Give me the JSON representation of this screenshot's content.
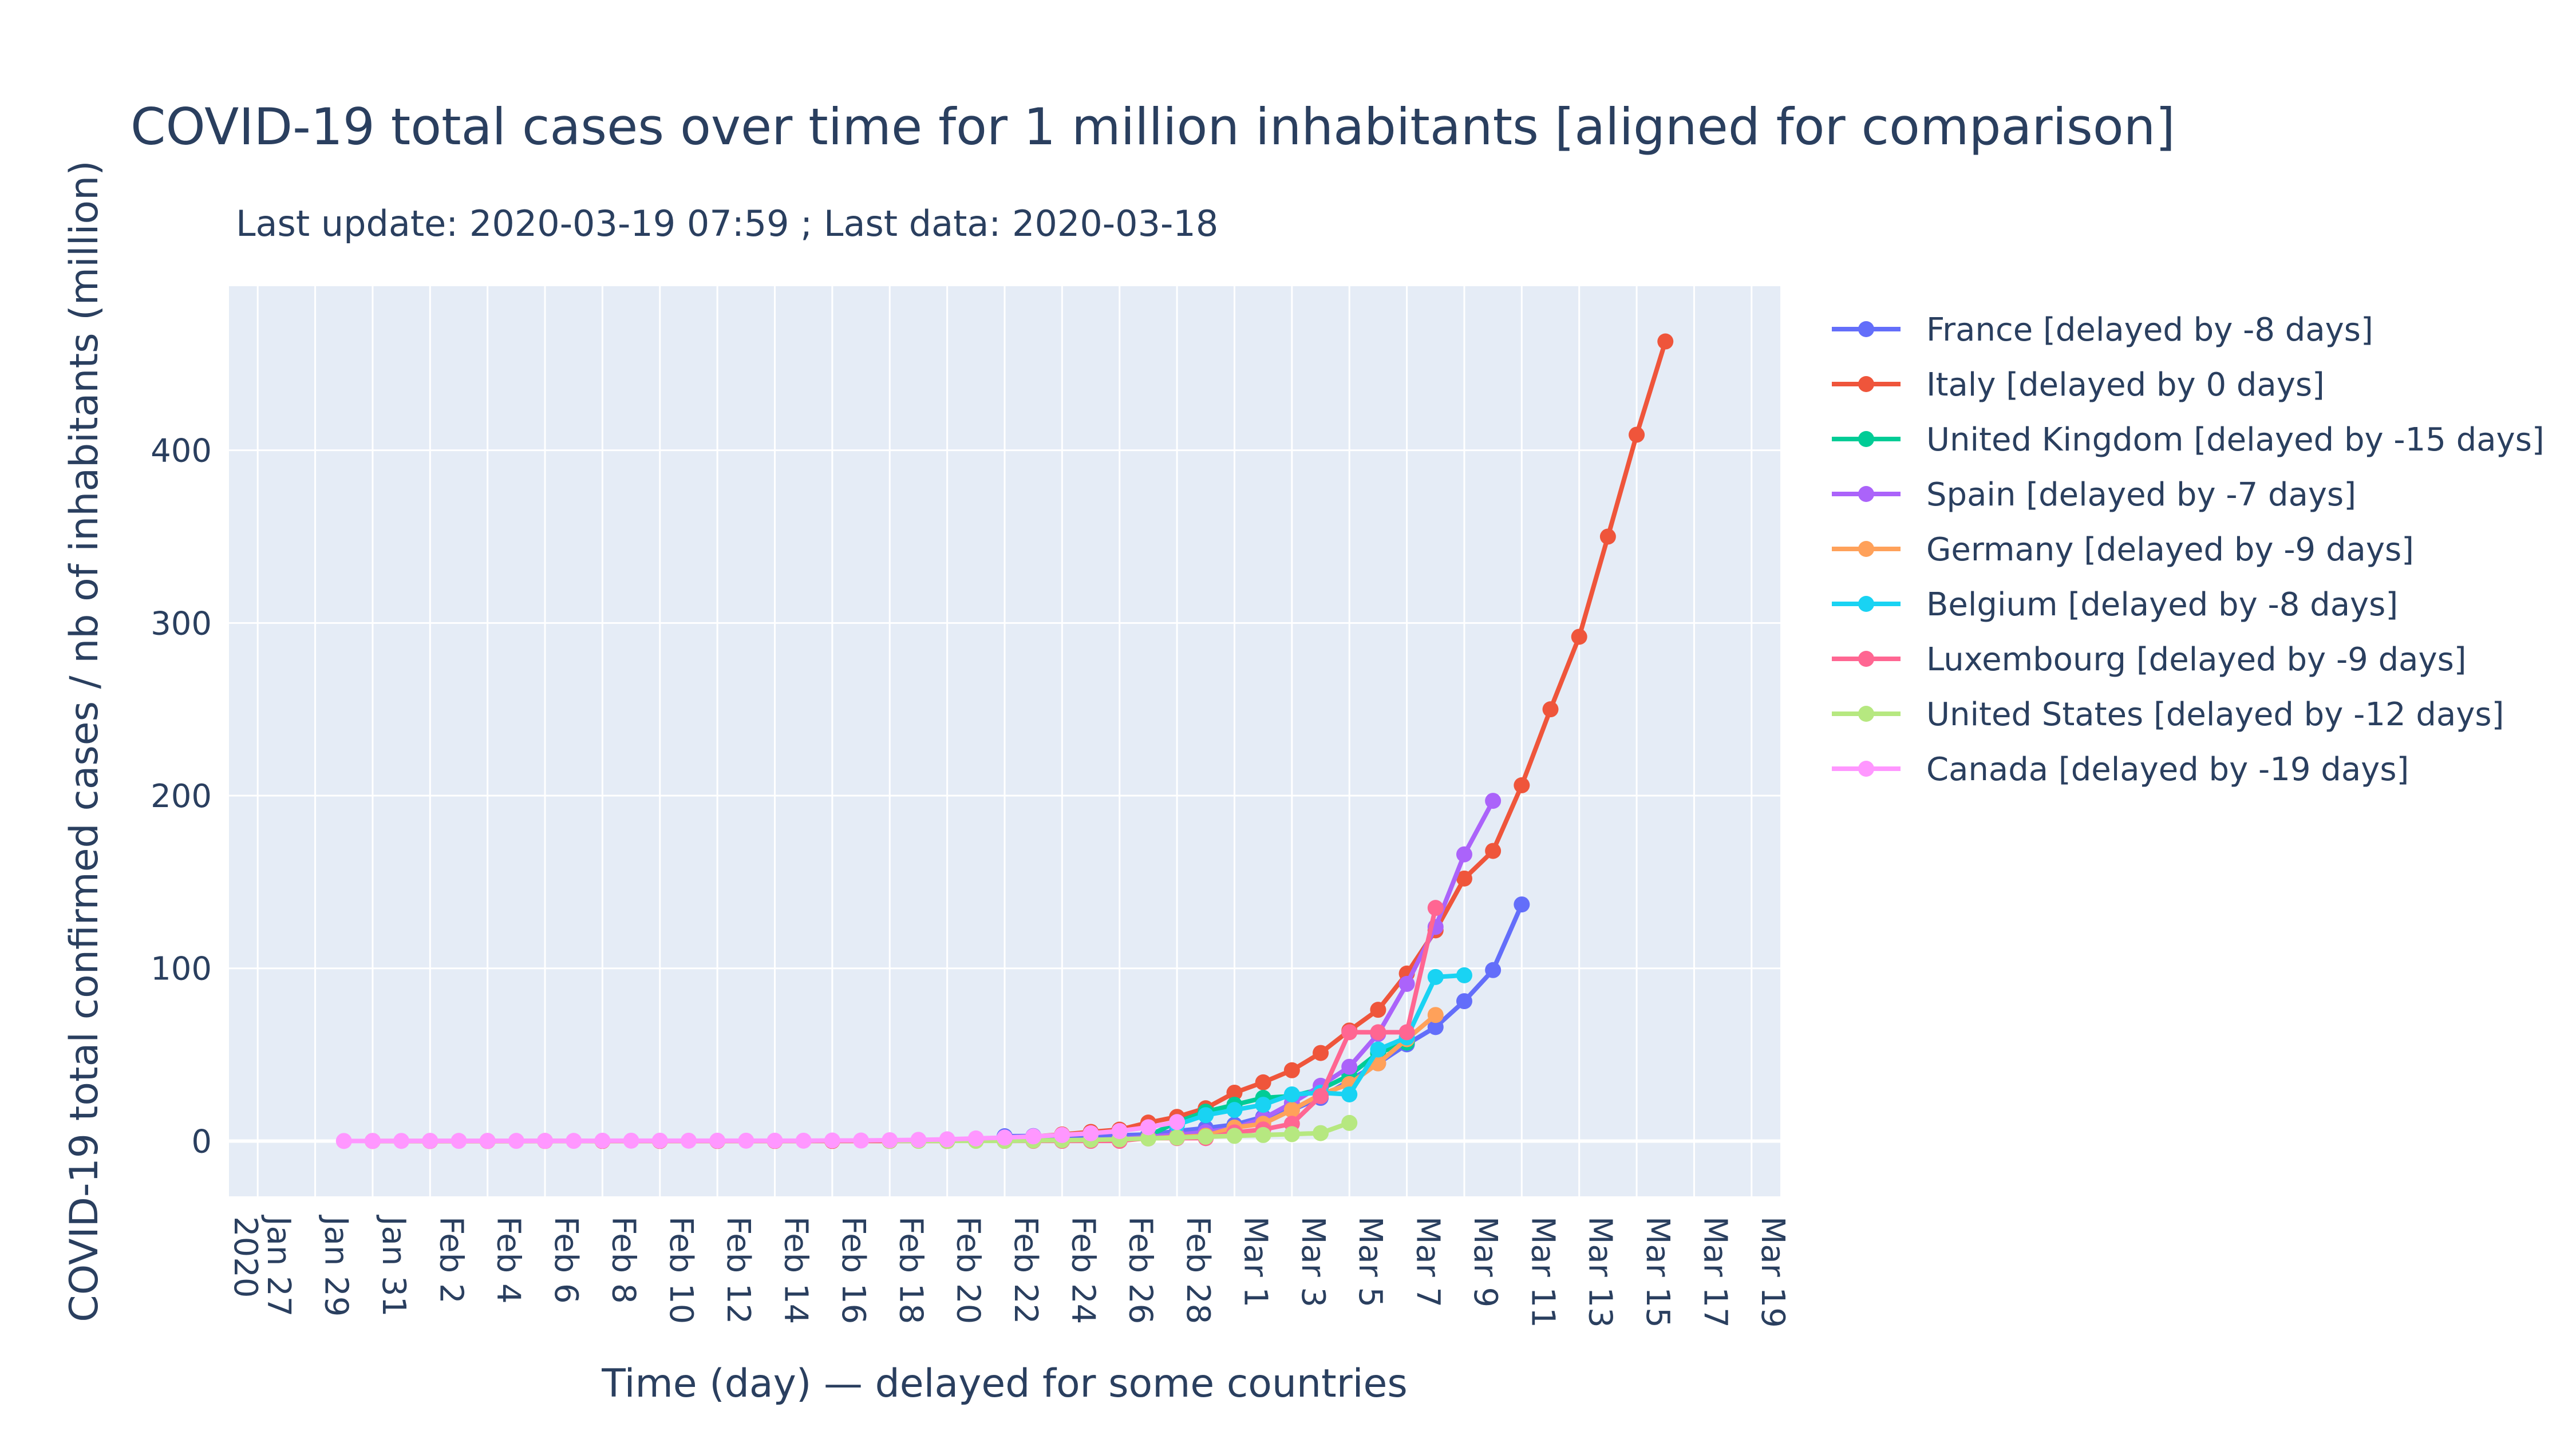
{
  "chart_data": {
    "type": "line",
    "title": "COVID-19 total cases over time for 1 million inhabitants [aligned for comparison]",
    "subtitle": "Last update: 2020-03-19 07:59 ; Last data: 2020-03-18",
    "xlabel": "Time (day) — delayed for some countries",
    "ylabel": "COVID-19 total confirmed cases / nb of inhabitants (million)",
    "x_range": [
      "2020-01-26",
      "2020-03-20"
    ],
    "ylim": [
      -32,
      495
    ],
    "y_ticks": [
      0,
      100,
      200,
      300,
      400
    ],
    "x_ticks": [
      {
        "date": "2020-01-27",
        "label": "Jan 27",
        "sub": "2020"
      },
      {
        "date": "2020-01-29",
        "label": "Jan 29"
      },
      {
        "date": "2020-01-31",
        "label": "Jan 31"
      },
      {
        "date": "2020-02-02",
        "label": "Feb 2"
      },
      {
        "date": "2020-02-04",
        "label": "Feb 4"
      },
      {
        "date": "2020-02-06",
        "label": "Feb 6"
      },
      {
        "date": "2020-02-08",
        "label": "Feb 8"
      },
      {
        "date": "2020-02-10",
        "label": "Feb 10"
      },
      {
        "date": "2020-02-12",
        "label": "Feb 12"
      },
      {
        "date": "2020-02-14",
        "label": "Feb 14"
      },
      {
        "date": "2020-02-16",
        "label": "Feb 16"
      },
      {
        "date": "2020-02-18",
        "label": "Feb 18"
      },
      {
        "date": "2020-02-20",
        "label": "Feb 20"
      },
      {
        "date": "2020-02-22",
        "label": "Feb 22"
      },
      {
        "date": "2020-02-24",
        "label": "Feb 24"
      },
      {
        "date": "2020-02-26",
        "label": "Feb 26"
      },
      {
        "date": "2020-02-28",
        "label": "Feb 28"
      },
      {
        "date": "2020-03-01",
        "label": "Mar 1"
      },
      {
        "date": "2020-03-03",
        "label": "Mar 3"
      },
      {
        "date": "2020-03-05",
        "label": "Mar 5"
      },
      {
        "date": "2020-03-07",
        "label": "Mar 7"
      },
      {
        "date": "2020-03-09",
        "label": "Mar 9"
      },
      {
        "date": "2020-03-11",
        "label": "Mar 11"
      },
      {
        "date": "2020-03-13",
        "label": "Mar 13"
      },
      {
        "date": "2020-03-15",
        "label": "Mar 15"
      },
      {
        "date": "2020-03-17",
        "label": "Mar 17"
      },
      {
        "date": "2020-03-19",
        "label": "Mar 19"
      }
    ],
    "grid": true,
    "legend_position": "right",
    "series": [
      {
        "name": "France [delayed by -8 days]",
        "color": "#636efa",
        "points": [
          [
            "2020-02-22",
            2.8
          ],
          [
            "2020-02-23",
            2.9
          ],
          [
            "2020-02-24",
            3.0
          ],
          [
            "2020-02-25",
            3.1
          ],
          [
            "2020-02-26",
            3.3
          ],
          [
            "2020-02-27",
            3.8
          ],
          [
            "2020-02-28",
            5.8
          ],
          [
            "2020-02-29",
            7.5
          ],
          [
            "2020-03-01",
            9.5
          ],
          [
            "2020-03-02",
            14
          ],
          [
            "2020-03-03",
            18
          ],
          [
            "2020-03-04",
            25
          ],
          [
            "2020-03-05",
            35
          ],
          [
            "2020-03-06",
            45
          ],
          [
            "2020-03-07",
            56
          ],
          [
            "2020-03-08",
            66
          ],
          [
            "2020-03-09",
            81
          ],
          [
            "2020-03-10",
            99
          ],
          [
            "2020-03-11",
            137
          ]
        ]
      },
      {
        "name": "Italy [delayed by 0 days]",
        "color": "#ef553b",
        "points": [
          [
            "2020-01-31",
            0.03
          ],
          [
            "2020-02-02",
            0.03
          ],
          [
            "2020-02-04",
            0.03
          ],
          [
            "2020-02-06",
            0.05
          ],
          [
            "2020-02-08",
            0.05
          ],
          [
            "2020-02-10",
            0.05
          ],
          [
            "2020-02-12",
            0.05
          ],
          [
            "2020-02-14",
            0.05
          ],
          [
            "2020-02-16",
            0.05
          ],
          [
            "2020-02-18",
            0.05
          ],
          [
            "2020-02-20",
            0.05
          ],
          [
            "2020-02-22",
            1.3
          ],
          [
            "2020-02-23",
            2.6
          ],
          [
            "2020-02-24",
            3.8
          ],
          [
            "2020-02-25",
            5.3
          ],
          [
            "2020-02-26",
            6.6
          ],
          [
            "2020-02-27",
            10.7
          ],
          [
            "2020-02-28",
            14
          ],
          [
            "2020-02-29",
            19
          ],
          [
            "2020-03-01",
            28
          ],
          [
            "2020-03-02",
            34
          ],
          [
            "2020-03-03",
            41
          ],
          [
            "2020-03-04",
            51
          ],
          [
            "2020-03-05",
            64
          ],
          [
            "2020-03-06",
            76
          ],
          [
            "2020-03-07",
            97
          ],
          [
            "2020-03-08",
            122
          ],
          [
            "2020-03-09",
            152
          ],
          [
            "2020-03-10",
            168
          ],
          [
            "2020-03-11",
            206
          ],
          [
            "2020-03-12",
            250
          ],
          [
            "2020-03-13",
            292
          ],
          [
            "2020-03-14",
            350
          ],
          [
            "2020-03-15",
            409
          ],
          [
            "2020-03-16",
            463
          ]
        ]
      },
      {
        "name": "United Kingdom [delayed by -15 days]",
        "color": "#00cc96",
        "points": [
          [
            "2020-02-22",
            0.4
          ],
          [
            "2020-02-23",
            0.5
          ],
          [
            "2020-02-24",
            0.5
          ],
          [
            "2020-02-25",
            0.5
          ],
          [
            "2020-02-26",
            0.6
          ],
          [
            "2020-02-27",
            3
          ],
          [
            "2020-02-28",
            11
          ],
          [
            "2020-02-29",
            17
          ],
          [
            "2020-03-01",
            21
          ],
          [
            "2020-03-02",
            25
          ],
          [
            "2020-03-03",
            26
          ],
          [
            "2020-03-04",
            30
          ],
          [
            "2020-03-05",
            38
          ],
          [
            "2020-03-06",
            51
          ],
          [
            "2020-03-07",
            57
          ]
        ]
      },
      {
        "name": "Spain [delayed by -7 days]",
        "color": "#ab63fa",
        "points": [
          [
            "2020-02-22",
            0.1
          ],
          [
            "2020-02-23",
            0.2
          ],
          [
            "2020-02-24",
            0.3
          ],
          [
            "2020-02-25",
            0.6
          ],
          [
            "2020-02-26",
            1.1
          ],
          [
            "2020-02-27",
            2.5
          ],
          [
            "2020-02-28",
            3.6
          ],
          [
            "2020-02-29",
            5.2
          ],
          [
            "2020-03-01",
            7.4
          ],
          [
            "2020-03-02",
            13
          ],
          [
            "2020-03-03",
            22
          ],
          [
            "2020-03-04",
            32
          ],
          [
            "2020-03-05",
            43
          ],
          [
            "2020-03-06",
            62
          ],
          [
            "2020-03-07",
            91
          ],
          [
            "2020-03-08",
            124
          ],
          [
            "2020-03-09",
            166
          ],
          [
            "2020-03-10",
            197
          ]
        ]
      },
      {
        "name": "Germany [delayed by -9 days]",
        "color": "#ffa15a",
        "points": [
          [
            "2020-02-22",
            0.1
          ],
          [
            "2020-02-23",
            0.2
          ],
          [
            "2020-02-24",
            0.2
          ],
          [
            "2020-02-25",
            0.3
          ],
          [
            "2020-02-26",
            0.7
          ],
          [
            "2020-02-27",
            1.5
          ],
          [
            "2020-02-28",
            2.4
          ],
          [
            "2020-02-29",
            3.1
          ],
          [
            "2020-03-01",
            7.8
          ],
          [
            "2020-03-02",
            10
          ],
          [
            "2020-03-03",
            18
          ],
          [
            "2020-03-04",
            27
          ],
          [
            "2020-03-05",
            33
          ],
          [
            "2020-03-06",
            45
          ],
          [
            "2020-03-07",
            59
          ],
          [
            "2020-03-08",
            73
          ]
        ]
      },
      {
        "name": "Belgium [delayed by -8 days]",
        "color": "#19d3f3",
        "points": [
          [
            "2020-02-28",
            9.5
          ],
          [
            "2020-02-29",
            15
          ],
          [
            "2020-03-01",
            18
          ],
          [
            "2020-03-02",
            21
          ],
          [
            "2020-03-03",
            27
          ],
          [
            "2020-03-04",
            28
          ],
          [
            "2020-03-05",
            27
          ],
          [
            "2020-03-06",
            53
          ],
          [
            "2020-03-07",
            60
          ],
          [
            "2020-03-08",
            95
          ],
          [
            "2020-03-09",
            96
          ]
        ]
      },
      {
        "name": "Luxembourg [delayed by -9 days]",
        "color": "#ff6692",
        "points": [
          [
            "2020-02-22",
            0.1
          ],
          [
            "2020-02-23",
            0.1
          ],
          [
            "2020-02-24",
            0.1
          ],
          [
            "2020-02-25",
            0.1
          ],
          [
            "2020-02-26",
            0.1
          ],
          [
            "2020-02-27",
            1.7
          ],
          [
            "2020-02-28",
            1.7
          ],
          [
            "2020-02-29",
            1.7
          ],
          [
            "2020-03-01",
            5
          ],
          [
            "2020-03-02",
            6.7
          ],
          [
            "2020-03-03",
            10
          ],
          [
            "2020-03-04",
            26
          ],
          [
            "2020-03-05",
            63
          ],
          [
            "2020-03-06",
            63
          ],
          [
            "2020-03-07",
            63
          ],
          [
            "2020-03-08",
            135
          ]
        ]
      },
      {
        "name": "United States [delayed by -12 days]",
        "color": "#b6e880",
        "points": [
          [
            "2020-02-18",
            0.1
          ],
          [
            "2020-02-19",
            0.1
          ],
          [
            "2020-02-20",
            0.1
          ],
          [
            "2020-02-21",
            0.1
          ],
          [
            "2020-02-22",
            0.1
          ],
          [
            "2020-02-23",
            0.3
          ],
          [
            "2020-02-24",
            0.5
          ],
          [
            "2020-02-25",
            0.7
          ],
          [
            "2020-02-26",
            1.0
          ],
          [
            "2020-02-27",
            1.5
          ],
          [
            "2020-02-28",
            2.0
          ],
          [
            "2020-02-29",
            2.5
          ],
          [
            "2020-03-01",
            3.0
          ],
          [
            "2020-03-02",
            3.5
          ],
          [
            "2020-03-03",
            4.0
          ],
          [
            "2020-03-04",
            4.6
          ],
          [
            "2020-03-05",
            10.5
          ]
        ]
      },
      {
        "name": "Canada [delayed by -19 days]",
        "color": "#ff97ff",
        "points": [
          [
            "2020-01-30",
            0.03
          ],
          [
            "2020-01-31",
            0.05
          ],
          [
            "2020-02-01",
            0.08
          ],
          [
            "2020-02-02",
            0.1
          ],
          [
            "2020-02-03",
            0.1
          ],
          [
            "2020-02-04",
            0.1
          ],
          [
            "2020-02-05",
            0.1
          ],
          [
            "2020-02-06",
            0.1
          ],
          [
            "2020-02-07",
            0.1
          ],
          [
            "2020-02-08",
            0.2
          ],
          [
            "2020-02-09",
            0.2
          ],
          [
            "2020-02-10",
            0.2
          ],
          [
            "2020-02-11",
            0.2
          ],
          [
            "2020-02-12",
            0.2
          ],
          [
            "2020-02-13",
            0.2
          ],
          [
            "2020-02-14",
            0.2
          ],
          [
            "2020-02-15",
            0.2
          ],
          [
            "2020-02-16",
            0.3
          ],
          [
            "2020-02-17",
            0.3
          ],
          [
            "2020-02-18",
            0.5
          ],
          [
            "2020-02-19",
            0.7
          ],
          [
            "2020-02-20",
            1.0
          ],
          [
            "2020-02-21",
            1.5
          ],
          [
            "2020-02-22",
            2.0
          ],
          [
            "2020-02-23",
            2.7
          ],
          [
            "2020-02-24",
            3.5
          ],
          [
            "2020-02-25",
            4.5
          ],
          [
            "2020-02-26",
            5.8
          ],
          [
            "2020-02-27",
            8.0
          ],
          [
            "2020-02-28",
            11.0
          ]
        ]
      }
    ]
  }
}
